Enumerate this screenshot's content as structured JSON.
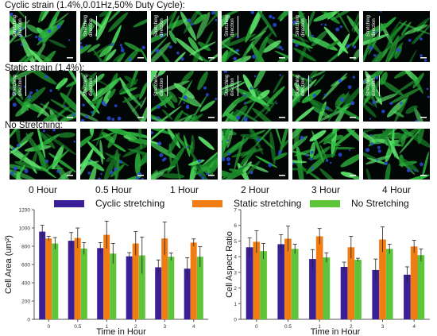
{
  "rows": [
    {
      "title": "Cyclic strain (1.4%,0.01Hz,50% Duty Cycle):",
      "annotation": "Stretching direction"
    },
    {
      "title": "Static strain (1.4%):",
      "annotation": "Stretching direction"
    },
    {
      "title": "No Stretching:",
      "annotation": ""
    }
  ],
  "time_labels": [
    "0 Hour",
    "0.5 Hour",
    "1 Hour",
    "2 Hour",
    "3 Hour",
    "4 Hour"
  ],
  "colors": {
    "cyclic": "#3a1f99",
    "static": "#f07c12",
    "none": "#5ec43a",
    "cell_fill": "#2fa53f",
    "nuclei": "#2a4bd6"
  },
  "chart_data": [
    {
      "type": "bar",
      "ylabel": "Cell Area (um²)",
      "xlabel": "Time in Hour",
      "categories": [
        "0",
        "0.5",
        "1",
        "2",
        "3",
        "4"
      ],
      "ylim": [
        0,
        1200
      ],
      "yticks": [
        0,
        200,
        400,
        600,
        800,
        1000,
        1200
      ],
      "series": [
        {
          "name": "Cyclic stretching",
          "values": [
            960,
            860,
            780,
            690,
            570,
            555
          ],
          "errors": [
            70,
            90,
            60,
            40,
            80,
            120
          ]
        },
        {
          "name": "Static stretching",
          "values": [
            885,
            890,
            925,
            830,
            885,
            840
          ],
          "errors": [
            25,
            110,
            150,
            130,
            180,
            40
          ]
        },
        {
          "name": "No Stretching",
          "values": [
            830,
            775,
            720,
            700,
            685,
            685
          ],
          "errors": [
            65,
            65,
            110,
            200,
            40,
            110
          ]
        }
      ]
    },
    {
      "type": "bar",
      "ylabel": "Cell Aspect Ratio",
      "xlabel": "Time in Hour",
      "categories": [
        "0",
        "0.5",
        "1",
        "2",
        "3",
        "4"
      ],
      "ylim": [
        0,
        7
      ],
      "yticks": [
        0,
        1,
        2,
        3,
        4,
        5,
        6,
        7
      ],
      "series": [
        {
          "name": "Cyclic stretching",
          "values": [
            4.6,
            4.8,
            3.85,
            3.35,
            3.15,
            2.85
          ],
          "errors": [
            0.6,
            0.6,
            0.6,
            0.3,
            0.7,
            0.5
          ]
        },
        {
          "name": "Static stretching",
          "values": [
            4.95,
            5.15,
            5.3,
            4.6,
            5.1,
            4.65
          ],
          "errors": [
            0.7,
            0.8,
            0.5,
            0.7,
            0.8,
            0.4
          ]
        },
        {
          "name": "No Stretching",
          "values": [
            4.35,
            4.5,
            3.95,
            3.8,
            4.5,
            4.1
          ],
          "errors": [
            0.5,
            0.3,
            0.3,
            0.1,
            0.3,
            0.4
          ]
        }
      ]
    }
  ]
}
